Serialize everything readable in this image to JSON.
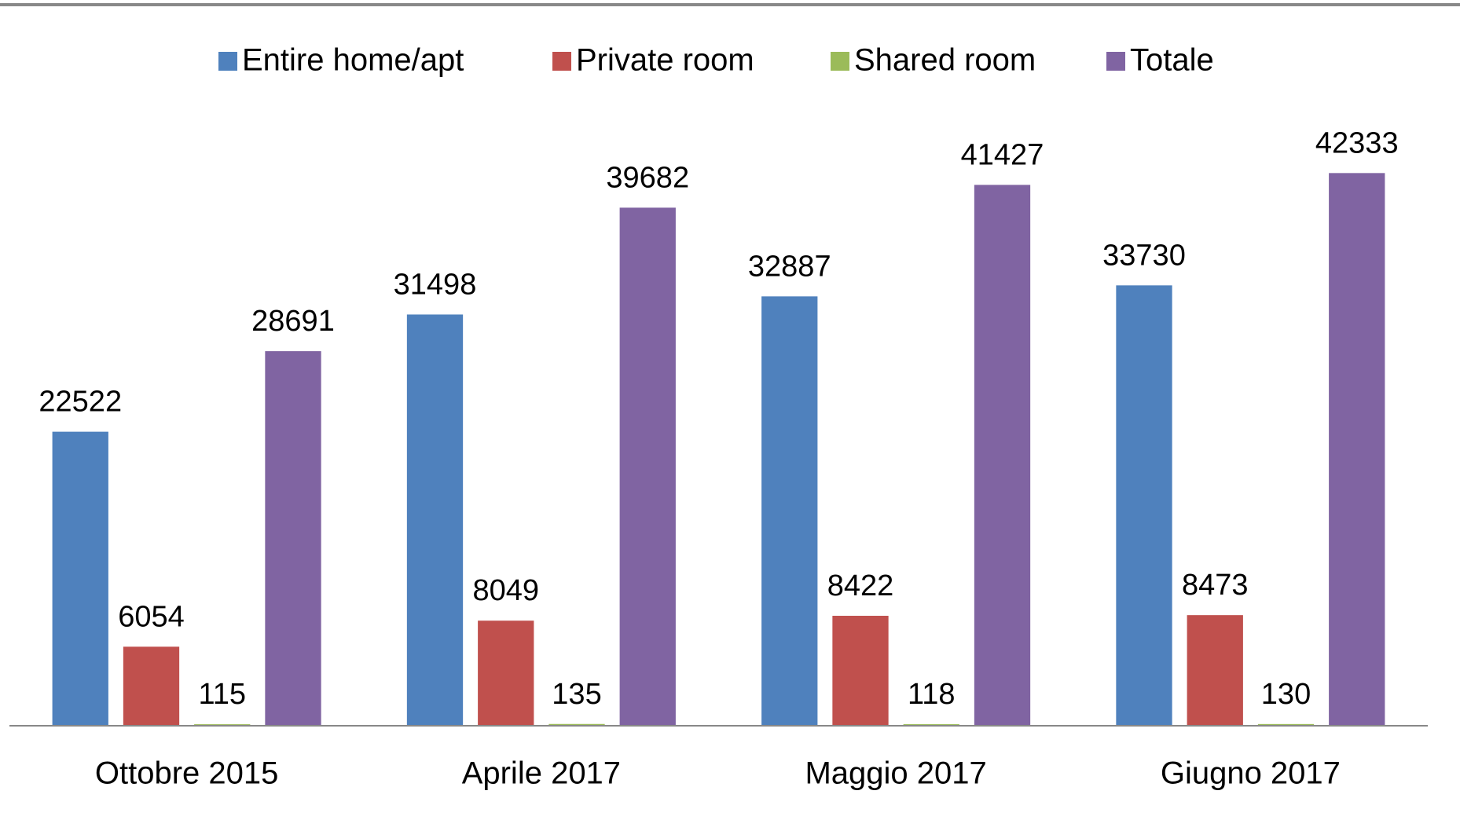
{
  "chart_data": {
    "type": "bar",
    "categories": [
      "Ottobre 2015",
      "Aprile 2017",
      "Maggio 2017",
      "Giugno 2017"
    ],
    "series": [
      {
        "name": "Entire home/apt",
        "color": "#4f81bd",
        "values": [
          22522,
          31498,
          32887,
          33730
        ]
      },
      {
        "name": "Private room",
        "color": "#c0504d",
        "values": [
          6054,
          8049,
          8422,
          8473
        ]
      },
      {
        "name": "Shared room",
        "color": "#9bbb59",
        "values": [
          115,
          135,
          118,
          130
        ]
      },
      {
        "name": "Totale",
        "color": "#8064a2",
        "values": [
          28691,
          39682,
          41427,
          42333
        ]
      }
    ],
    "ylim": [
      0,
      45000
    ],
    "legend": "top"
  }
}
